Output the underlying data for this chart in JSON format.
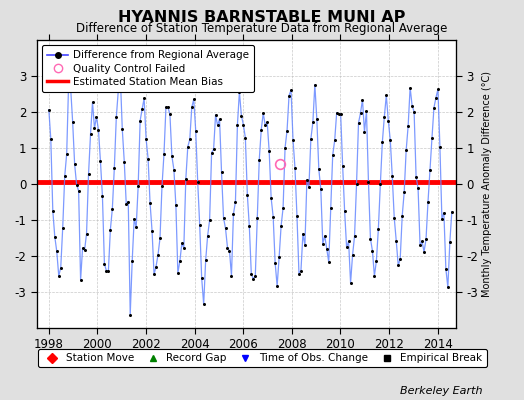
{
  "title": "HYANNIS BARNSTABLE MUNI AP",
  "subtitle": "Difference of Station Temperature Data from Regional Average",
  "ylabel_right": "Monthly Temperature Anomaly Difference (°C)",
  "xlim": [
    1997.5,
    2014.75
  ],
  "ylim": [
    -4,
    4
  ],
  "yticks_left": [
    -3,
    -2,
    -1,
    0,
    1,
    2,
    3
  ],
  "yticks_right": [
    -3,
    -2,
    -1,
    0,
    1,
    2,
    3
  ],
  "xticks": [
    1998,
    2000,
    2002,
    2004,
    2006,
    2008,
    2010,
    2012,
    2014
  ],
  "bias_value": 0.05,
  "line_color": "#4444FF",
  "line_color_dark": "#0000CC",
  "bias_color": "#FF0000",
  "background_color": "#E0E0E0",
  "plot_bg_color": "#FFFFFF",
  "watermark": "Berkeley Earth",
  "qc_failed_x": 2007.5,
  "qc_failed_y": 0.55,
  "seed": 17
}
